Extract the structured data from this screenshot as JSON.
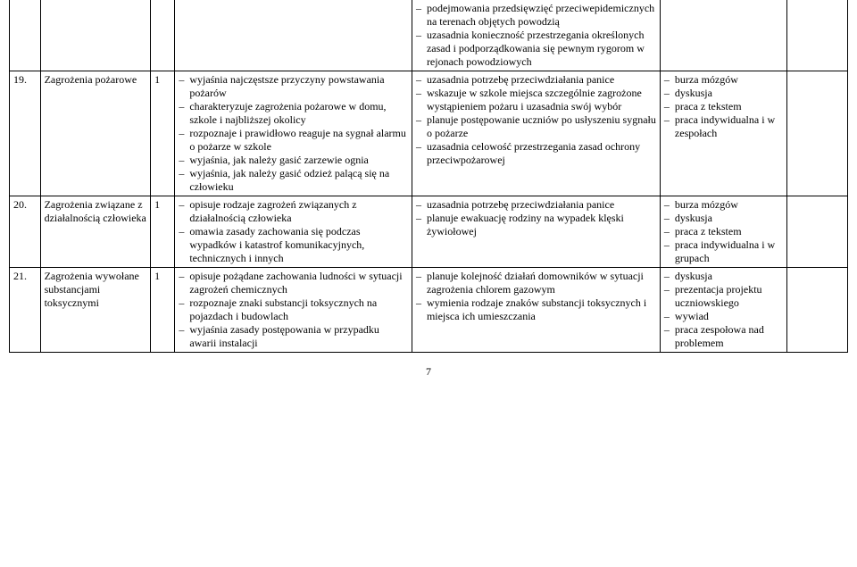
{
  "page_number": "7",
  "rows": [
    {
      "num": "",
      "topic": "",
      "hours": "",
      "colA": [],
      "colB": [
        "podejmowania przedsięwzięć przeciwepidemicznych na terenach objętych powodzią",
        "uzasadnia konieczność przestrzegania określonych zasad i podporządkowania się pewnym rygorom w rejonach powodziowych"
      ],
      "colC": [],
      "colD": []
    },
    {
      "num": "19.",
      "topic": "Zagrożenia pożarowe",
      "hours": "1",
      "colA": [
        "wyjaśnia najczęstsze przyczyny powstawania pożarów",
        "charakteryzuje zagrożenia pożarowe w domu, szkole i najbliższej okolicy",
        "rozpoznaje i prawidłowo reaguje na sygnał alarmu o pożarze w szkole",
        "wyjaśnia, jak należy gasić zarzewie ognia",
        "wyjaśnia, jak należy gasić odzież palącą się na człowieku"
      ],
      "colB": [
        "uzasadnia potrzebę przeciwdziałania panice",
        "wskazuje w szkole miejsca szczególnie zagrożone wystąpieniem pożaru i uzasadnia swój wybór",
        "planuje postępowanie uczniów po usłyszeniu sygnału o pożarze",
        "uzasadnia celowość przestrzegania zasad ochrony przeciwpożarowej"
      ],
      "colC": [
        "burza mózgów",
        "dyskusja",
        "praca z tekstem",
        "praca indywidualna i w zespołach"
      ],
      "colD": []
    },
    {
      "num": "20.",
      "topic": "Zagrożenia związane z działalnością człowieka",
      "hours": "1",
      "colA": [
        "opisuje rodzaje zagrożeń związanych z działalnością człowieka",
        "omawia zasady zachowania się podczas wypadków i katastrof komunikacyjnych, technicznych i innych"
      ],
      "colB": [
        "uzasadnia potrzebę przeciwdziałania panice",
        "planuje ewakuację rodziny na wypadek klęski żywiołowej"
      ],
      "colC": [
        "burza mózgów",
        "dyskusja",
        "praca z tekstem",
        "praca indywidualna i w grupach"
      ],
      "colD": []
    },
    {
      "num": "21.",
      "topic": "Zagrożenia wywołane substancjami toksycznymi",
      "hours": "1",
      "colA": [
        "opisuje pożądane zachowania ludności w sytuacji zagrożeń chemicznych",
        "rozpoznaje znaki substancji toksycznych na pojazdach i budowlach",
        "wyjaśnia zasady postępowania w przypadku awarii instalacji"
      ],
      "colB": [
        "planuje kolejność działań domowników w sytuacji zagrożenia chlorem gazowym",
        "wymienia rodzaje znaków substancji toksycznych i miejsca ich umieszczania"
      ],
      "colC": [
        "dyskusja",
        "prezentacja projektu uczniowskiego",
        "wywiad",
        "praca zespołowa nad problemem"
      ],
      "colD": []
    }
  ]
}
